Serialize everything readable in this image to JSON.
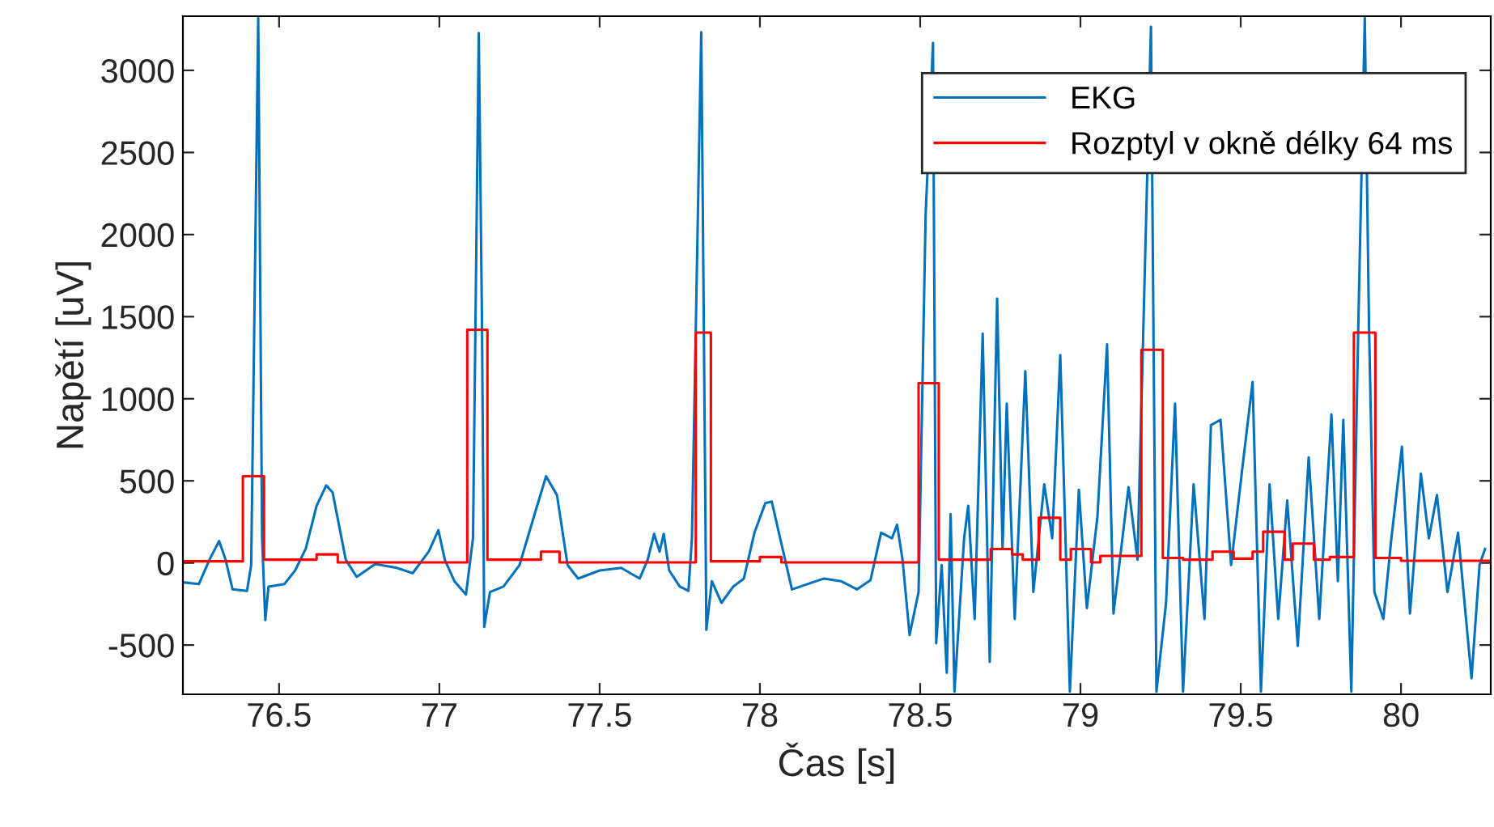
{
  "chart_data": {
    "type": "line",
    "xlabel": "Čas [s]",
    "ylabel": "Napětí [uV]",
    "xlim": [
      76.2,
      80.28
    ],
    "xticks": [
      76.5,
      77,
      77.5,
      78,
      78.5,
      79,
      79.5,
      80
    ],
    "ylim": [
      -800,
      3330
    ],
    "yticks": [
      -500,
      0,
      500,
      1000,
      1500,
      2000,
      2500,
      3000
    ],
    "grid": false,
    "legend": "top right",
    "series": [
      {
        "name": "EKG",
        "color": "#0072bd",
        "x": [
          76.2,
          76.25,
          76.283,
          76.313,
          76.333,
          76.355,
          76.4,
          76.413,
          76.435,
          76.447,
          76.457,
          76.467,
          76.517,
          76.55,
          76.583,
          76.617,
          76.647,
          76.667,
          76.708,
          76.742,
          76.8,
          76.867,
          76.917,
          76.967,
          76.997,
          77.017,
          77.047,
          77.083,
          77.105,
          77.123,
          77.133,
          77.14,
          77.158,
          77.2,
          77.25,
          77.3,
          77.333,
          77.367,
          77.4,
          77.433,
          77.5,
          77.567,
          77.625,
          77.65,
          77.67,
          77.687,
          77.7,
          77.717,
          77.75,
          77.777,
          77.788,
          77.817,
          77.825,
          77.833,
          77.85,
          77.88,
          77.917,
          77.95,
          77.983,
          78.017,
          78.037,
          78.067,
          78.1,
          78.15,
          78.2,
          78.253,
          78.303,
          78.345,
          78.378,
          78.412,
          78.428,
          78.445,
          78.467,
          78.495,
          78.517,
          78.54,
          78.55,
          78.567,
          78.583,
          78.595,
          78.607,
          78.637,
          78.65,
          78.67,
          78.695,
          78.717,
          78.74,
          78.757,
          78.77,
          78.795,
          78.828,
          78.853,
          78.887,
          78.912,
          78.937,
          78.967,
          78.995,
          79.02,
          79.053,
          79.083,
          79.103,
          79.15,
          79.178,
          79.22,
          79.237,
          79.267,
          79.295,
          79.32,
          79.353,
          79.387,
          79.407,
          79.437,
          79.47,
          79.507,
          79.537,
          79.563,
          79.59,
          79.617,
          79.645,
          79.678,
          79.712,
          79.745,
          79.783,
          79.803,
          79.82,
          79.845,
          79.867,
          79.887,
          79.9,
          79.917,
          79.945,
          79.97,
          80.003,
          80.028,
          80.062,
          80.087,
          80.112,
          80.145,
          80.178,
          80.22,
          80.245,
          80.262
        ],
        "values": [
          -118,
          -128,
          20,
          134,
          20,
          -161,
          -170,
          -13,
          3320,
          150,
          -348,
          -144,
          -128,
          -46,
          85,
          348,
          472,
          430,
          20,
          -85,
          -7,
          -30,
          -62,
          69,
          200,
          20,
          -111,
          -193,
          150,
          3227,
          1462,
          -390,
          -177,
          -144,
          -13,
          315,
          528,
          413,
          -13,
          -95,
          -46,
          -30,
          -95,
          20,
          177,
          69,
          177,
          -46,
          -144,
          -170,
          150,
          3233,
          1462,
          -407,
          -111,
          -243,
          -144,
          -95,
          184,
          364,
          374,
          118,
          -161,
          -128,
          -95,
          -111,
          -161,
          -105,
          184,
          150,
          233,
          20,
          -439,
          -177,
          2118,
          3167,
          -489,
          -13,
          -669,
          298,
          -784,
          150,
          348,
          -341,
          1397,
          -603,
          1610,
          85,
          971,
          -341,
          1167,
          -177,
          479,
          150,
          1266,
          -784,
          446,
          -275,
          282,
          1331,
          -308,
          462,
          20,
          3266,
          -784,
          -243,
          971,
          -784,
          479,
          -341,
          839,
          872,
          -13,
          610,
          1102,
          -784,
          479,
          -341,
          380,
          -505,
          643,
          -341,
          905,
          -111,
          872,
          -784,
          1462,
          3320,
          1462,
          -177,
          -341,
          150,
          708,
          -308,
          544,
          150,
          413,
          -177,
          184,
          -702,
          -13,
          85
        ]
      },
      {
        "name": "Rozptyl v okně délky 64 ms",
        "type": "step",
        "color": "#ff0000",
        "x": [
          76.2,
          76.387,
          76.453,
          76.617,
          76.683,
          77.087,
          77.15,
          77.317,
          77.375,
          77.8,
          77.847,
          78.0,
          78.067,
          78.495,
          78.558,
          78.72,
          78.787,
          78.82,
          78.87,
          78.937,
          78.97,
          79.033,
          79.062,
          79.19,
          79.257,
          79.32,
          79.412,
          79.478,
          79.537,
          79.57,
          79.637,
          79.662,
          79.728,
          79.778,
          79.853,
          79.92,
          80.0,
          80.28
        ],
        "values": [
          10,
          528,
          20,
          52,
          3,
          1420,
          20,
          69,
          3,
          1403,
          10,
          36,
          3,
          1095,
          20,
          85,
          52,
          20,
          275,
          20,
          85,
          3,
          43,
          1298,
          30,
          20,
          69,
          26,
          69,
          190,
          20,
          118,
          20,
          36,
          1403,
          30,
          13,
          13
        ]
      }
    ]
  }
}
